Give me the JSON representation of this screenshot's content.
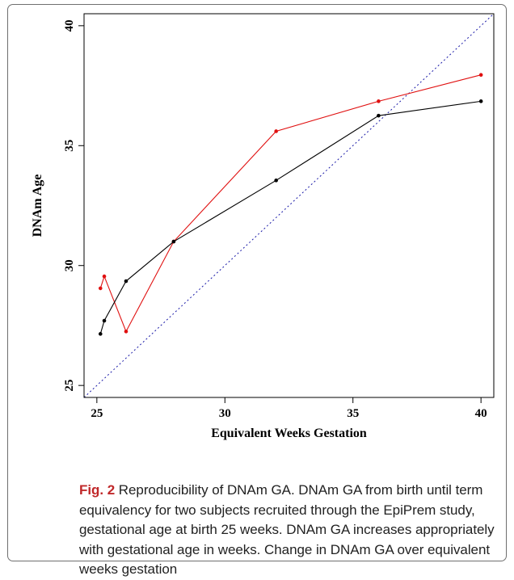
{
  "caption": {
    "label": "Fig. 2",
    "text": "Reproducibility of DNAm GA. DNAm GA from birth until term equivalency for two subjects recruited through the EpiPrem study, gestational age at birth 25 weeks. DNAm GA increases appropriately with gestational age in weeks. Change in DNAm GA over equivalent weeks gestation"
  },
  "chart_data": {
    "type": "line",
    "xlabel": "Equivalent Weeks Gestation",
    "ylabel": "DNAm Age",
    "xlim": [
      24.5,
      40.5
    ],
    "ylim": [
      24.5,
      40.5
    ],
    "xticks": [
      25,
      30,
      35,
      40
    ],
    "yticks": [
      25,
      30,
      35,
      40
    ],
    "grid": false,
    "series": [
      {
        "color": "#e01010",
        "x": [
          25.14,
          25.29,
          26.14,
          28.0,
          32.0,
          36.0,
          40.0
        ],
        "y": [
          29.05,
          29.55,
          27.25,
          31.0,
          35.6,
          36.85,
          37.95
        ]
      },
      {
        "color": "#000000",
        "x": [
          25.14,
          25.29,
          26.14,
          28.0,
          32.0,
          36.0,
          40.0
        ],
        "y": [
          27.15,
          27.7,
          29.35,
          31.0,
          33.55,
          36.25,
          36.85
        ]
      }
    ],
    "reference_line": {
      "x": [
        24.5,
        40.5
      ],
      "y": [
        24.5,
        40.5
      ],
      "color": "#1a1aa8",
      "style": "dotted"
    }
  }
}
